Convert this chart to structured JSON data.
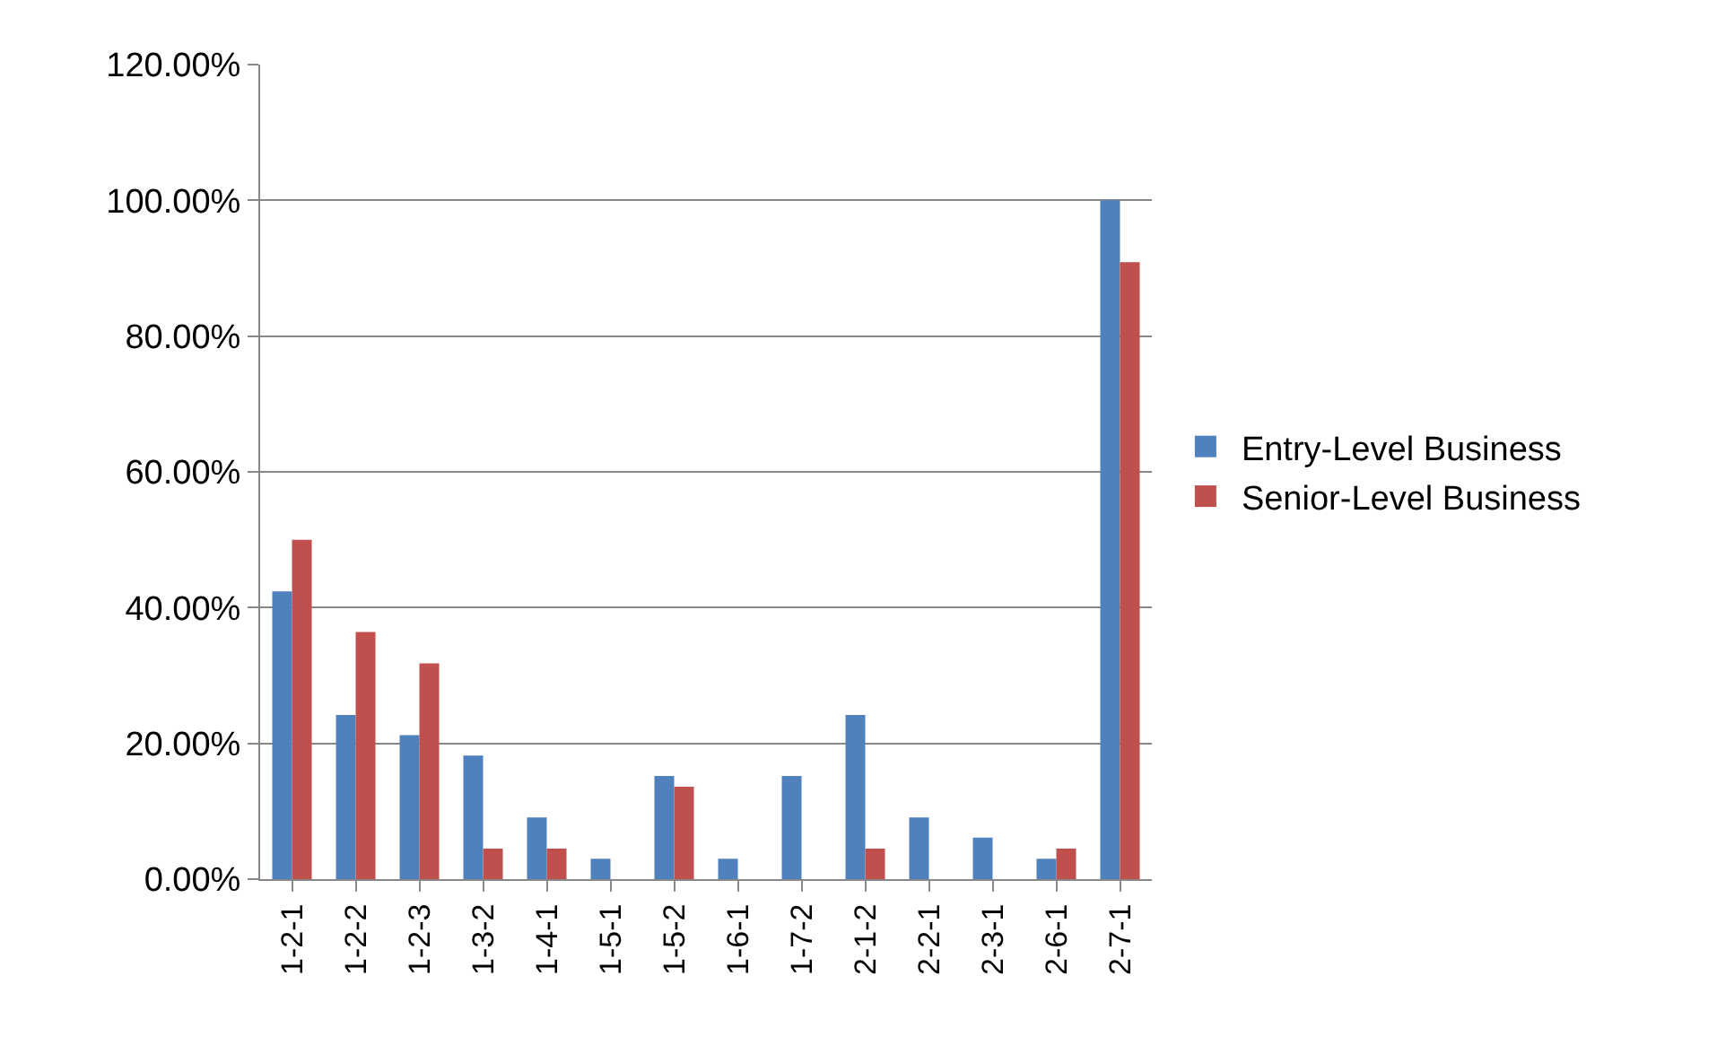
{
  "chart_data": {
    "type": "bar",
    "categories": [
      "1-2-1",
      "1-2-2",
      "1-2-3",
      "1-3-2",
      "1-4-1",
      "1-5-1",
      "1-5-2",
      "1-6-1",
      "1-7-2",
      "2-1-2",
      "2-2-1",
      "2-3-1",
      "2-6-1",
      "2-7-1"
    ],
    "series": [
      {
        "name": "Entry-Level Business",
        "color": "#4f81bd",
        "values": [
          42.4,
          24.2,
          21.2,
          18.2,
          9.1,
          3.0,
          15.2,
          3.0,
          15.2,
          24.2,
          9.1,
          6.1,
          3.0,
          100
        ]
      },
      {
        "name": "Senior-Level Business",
        "color": "#c0504d",
        "values": [
          50,
          36.4,
          31.8,
          4.5,
          4.5,
          0,
          13.6,
          0,
          0,
          4.5,
          0,
          0,
          4.5,
          90.9
        ]
      }
    ],
    "ylim": [
      0,
      120
    ],
    "yticks": [
      {
        "value": 0,
        "label": "0.00%"
      },
      {
        "value": 20,
        "label": "20.00%"
      },
      {
        "value": 40,
        "label": "40.00%"
      },
      {
        "value": 60,
        "label": "60.00%"
      },
      {
        "value": 80,
        "label": "80.00%"
      },
      {
        "value": 100,
        "label": "100.00%"
      },
      {
        "value": 120,
        "label": "120.00%"
      }
    ],
    "grid": "y",
    "legend": "right"
  }
}
